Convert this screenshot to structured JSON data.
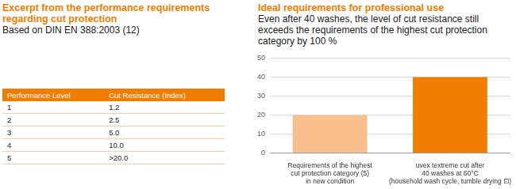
{
  "left_panel": {
    "heading": [
      "Excerpt from the performance requirements",
      "regarding cut protection"
    ],
    "subheading": "Based on DIN EN 388:2003 (12)",
    "table": {
      "header": [
        "Performance Level",
        "Cut Resistance (Index)"
      ],
      "rows": [
        [
          "1",
          "1.2"
        ],
        [
          "2",
          "2.5"
        ],
        [
          "3",
          "5.0"
        ],
        [
          "4",
          "10.0"
        ],
        [
          "5",
          ">20.0"
        ]
      ]
    }
  },
  "chart_data": {
    "type": "bar",
    "title": "Ideal requirements for professional use",
    "subtitle": [
      "Even after 40 washes, the level of cut resistance still",
      "exceeds the requirements of the highest cut protection",
      "category by 100 %"
    ],
    "categories": [
      [
        "Requirements of the highest",
        "cut protection category (5)",
        "in new condition"
      ],
      [
        "uvex textreme cut after",
        "40 washes at 60°C",
        "(household wash cycle, tumble drying ⊡)"
      ]
    ],
    "values": [
      20,
      40
    ],
    "colors": [
      "#f9bf8c",
      "#f07d00"
    ],
    "ylim": [
      0,
      50
    ],
    "yticks": [
      0,
      10,
      20,
      30,
      40,
      50
    ],
    "grid": true
  }
}
